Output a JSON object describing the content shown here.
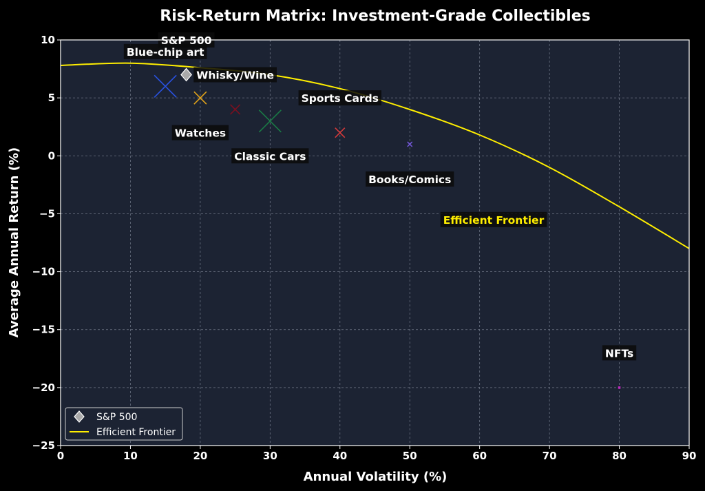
{
  "chart_data": {
    "type": "scatter",
    "title": "Risk-Return Matrix: Investment-Grade Collectibles",
    "xlabel": "Annual Volatility (%)",
    "ylabel": "Average Annual Return (%)",
    "xlim": [
      0,
      90
    ],
    "ylim": [
      -25,
      10
    ],
    "xticks": [
      0,
      10,
      20,
      30,
      40,
      50,
      60,
      70,
      80,
      90
    ],
    "yticks": [
      10,
      5,
      0,
      -5,
      -10,
      -15,
      -20,
      -25
    ],
    "yticklabels": [
      "10",
      "5",
      "0",
      "−5",
      "−10",
      "−15",
      "−20",
      "−25"
    ],
    "grid": true,
    "background_color": "#1c2333",
    "legend": {
      "placement": "lower-left",
      "entries": [
        {
          "label": "S&P 500",
          "marker": "diamond",
          "color": "#aaaaaa"
        },
        {
          "label": "Efficient Frontier",
          "marker": "line",
          "color": "#ffee00"
        }
      ]
    },
    "points": [
      {
        "label": "Blue-chip art",
        "x": 15,
        "y": 6,
        "color": "#2952e3",
        "marker": "x",
        "size": "large"
      },
      {
        "label": "Watches",
        "x": 20,
        "y": 5,
        "color": "#e0a21a",
        "marker": "x",
        "size": "medium"
      },
      {
        "label": "Whisky/Wine",
        "x": 25,
        "y": 4,
        "color": "#7a1020",
        "marker": "x",
        "size": "small"
      },
      {
        "label": "Classic Cars",
        "x": 30,
        "y": 3,
        "color": "#1a7a45",
        "marker": "x",
        "size": "large"
      },
      {
        "label": "Sports Cards",
        "x": 40,
        "y": 2,
        "color": "#d63a3a",
        "marker": "x",
        "size": "small"
      },
      {
        "label": "Books/Comics",
        "x": 50,
        "y": 1,
        "color": "#7257d6",
        "marker": "x",
        "size": "tiny"
      },
      {
        "label": "NFTs",
        "x": 80,
        "y": -20,
        "color": "#c02ac0",
        "marker": "square",
        "size": "tiny"
      },
      {
        "label": "S&P 500",
        "x": 18,
        "y": 7,
        "color": "#aaaaaa",
        "marker": "diamond",
        "size": "medium"
      }
    ],
    "frontier": {
      "name": "Efficient Frontier",
      "color": "#ffee00",
      "x": [
        0,
        10,
        20,
        30,
        40,
        50,
        60,
        70,
        80,
        90
      ],
      "y": [
        7.8,
        8.0,
        7.6,
        7.0,
        5.8,
        4.0,
        1.8,
        -1.0,
        -4.4,
        -8.0
      ]
    },
    "annotations": [
      {
        "text": "S&P 500",
        "x": 18,
        "y": 10,
        "color": "#ffffff"
      },
      {
        "text": "Blue-chip art",
        "x": 15,
        "y": 9,
        "color": "#ffffff"
      },
      {
        "text": "Whisky/Wine",
        "x": 25,
        "y": 7,
        "color": "#ffffff"
      },
      {
        "text": "Sports Cards",
        "x": 40,
        "y": 5,
        "color": "#ffffff"
      },
      {
        "text": "Watches",
        "x": 20,
        "y": 2,
        "color": "#ffffff"
      },
      {
        "text": "Classic Cars",
        "x": 30,
        "y": 0,
        "color": "#ffffff"
      },
      {
        "text": "Books/Comics",
        "x": 50,
        "y": -2,
        "color": "#ffffff"
      },
      {
        "text": "Efficient Frontier",
        "x": 62,
        "y": -5.5,
        "color": "#ffee00"
      },
      {
        "text": "NFTs",
        "x": 80,
        "y": -17,
        "color": "#ffffff"
      }
    ]
  }
}
